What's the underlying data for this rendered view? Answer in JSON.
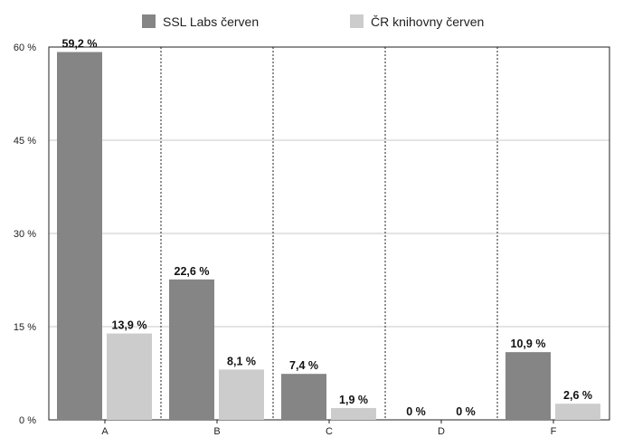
{
  "chart_data": {
    "type": "bar",
    "categories": [
      "A",
      "B",
      "C",
      "D",
      "F"
    ],
    "series": [
      {
        "name": "SSL Labs červen",
        "values": [
          59.2,
          22.6,
          7.4,
          0,
          10.9
        ],
        "labels": [
          "59,2 %",
          "22,6 %",
          "7,4 %",
          "0 %",
          "10,9 %"
        ],
        "color": "#858585"
      },
      {
        "name": "ČR knihovny červen",
        "values": [
          13.9,
          8.1,
          1.9,
          0,
          2.6
        ],
        "labels": [
          "13,9 %",
          "8,1 %",
          "1,9 %",
          "0 %",
          "2,6 %"
        ],
        "color": "#cccccc"
      }
    ],
    "ylim": [
      0,
      60
    ],
    "yticks": [
      0,
      15,
      30,
      45,
      60
    ],
    "ytick_labels": [
      "0 %",
      "15 %",
      "30 %",
      "45 %",
      "60 %"
    ],
    "title": "",
    "xlabel": "",
    "ylabel": "",
    "legend_position": "top",
    "grid": "horizontal solid, vertical dotted separators"
  }
}
